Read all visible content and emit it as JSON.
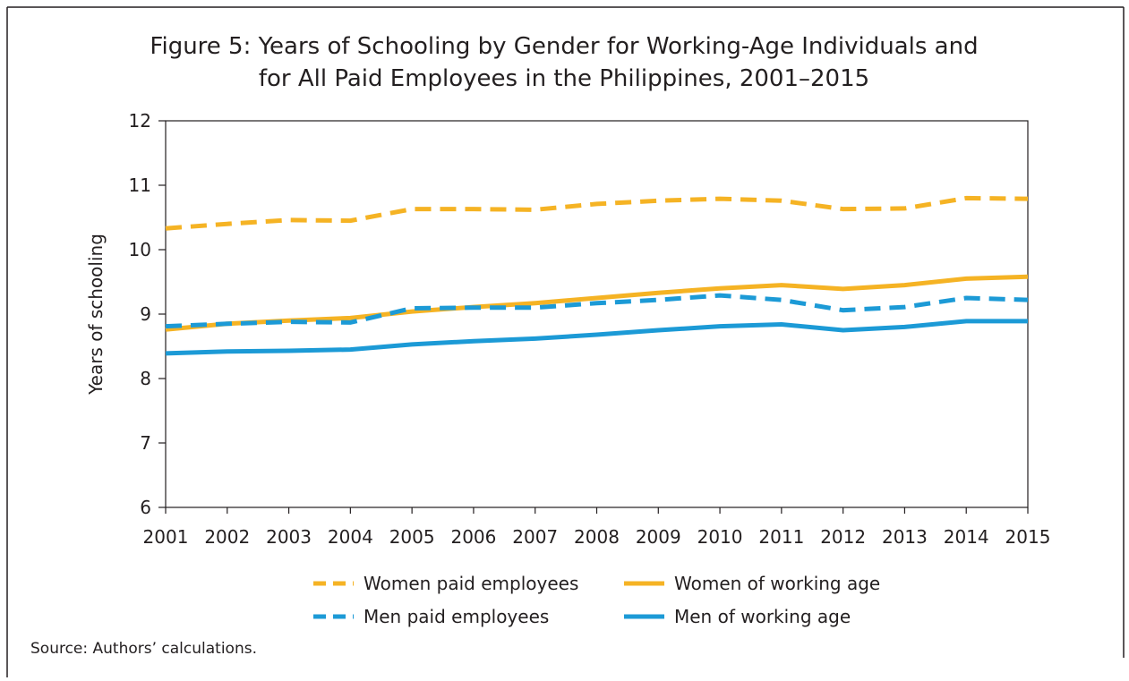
{
  "chart_data": {
    "type": "line",
    "title": [
      "Figure 5: Years of Schooling by Gender for Working-Age Individuals and",
      "for All Paid Employees in the Philippines, 2001–2015"
    ],
    "y_label": "Years of schooling",
    "source": "Source: Authors’ calculations.",
    "categories": [
      "2001",
      "2002",
      "2003",
      "2004",
      "2005",
      "2006",
      "2007",
      "2008",
      "2009",
      "2010",
      "2011",
      "2012",
      "2013",
      "2014",
      "2015"
    ],
    "ylim": [
      6,
      12
    ],
    "yticks": [
      6,
      7,
      8,
      9,
      10,
      11,
      12
    ],
    "series": [
      {
        "name": "Women paid employees",
        "color": "#f5b324",
        "style": "dashed",
        "values": [
          10.33,
          10.4,
          10.46,
          10.45,
          10.63,
          10.63,
          10.62,
          10.71,
          10.76,
          10.79,
          10.76,
          10.63,
          10.64,
          10.8,
          10.79
        ]
      },
      {
        "name": "Women of working age",
        "color": "#f5b324",
        "style": "solid",
        "values": [
          8.76,
          8.85,
          8.9,
          8.94,
          9.04,
          9.11,
          9.17,
          9.25,
          9.33,
          9.4,
          9.45,
          9.39,
          9.45,
          9.55,
          9.58
        ]
      },
      {
        "name": "Men paid employees",
        "color": "#1c9ad6",
        "style": "dashed",
        "values": [
          8.81,
          8.85,
          8.88,
          8.87,
          9.09,
          9.1,
          9.1,
          9.17,
          9.22,
          9.29,
          9.22,
          9.06,
          9.11,
          9.25,
          9.22
        ]
      },
      {
        "name": "Men of working age",
        "color": "#1c9ad6",
        "style": "solid",
        "values": [
          8.39,
          8.42,
          8.43,
          8.45,
          8.53,
          8.58,
          8.62,
          8.68,
          8.75,
          8.81,
          8.84,
          8.75,
          8.8,
          8.89,
          8.89
        ]
      }
    ]
  }
}
